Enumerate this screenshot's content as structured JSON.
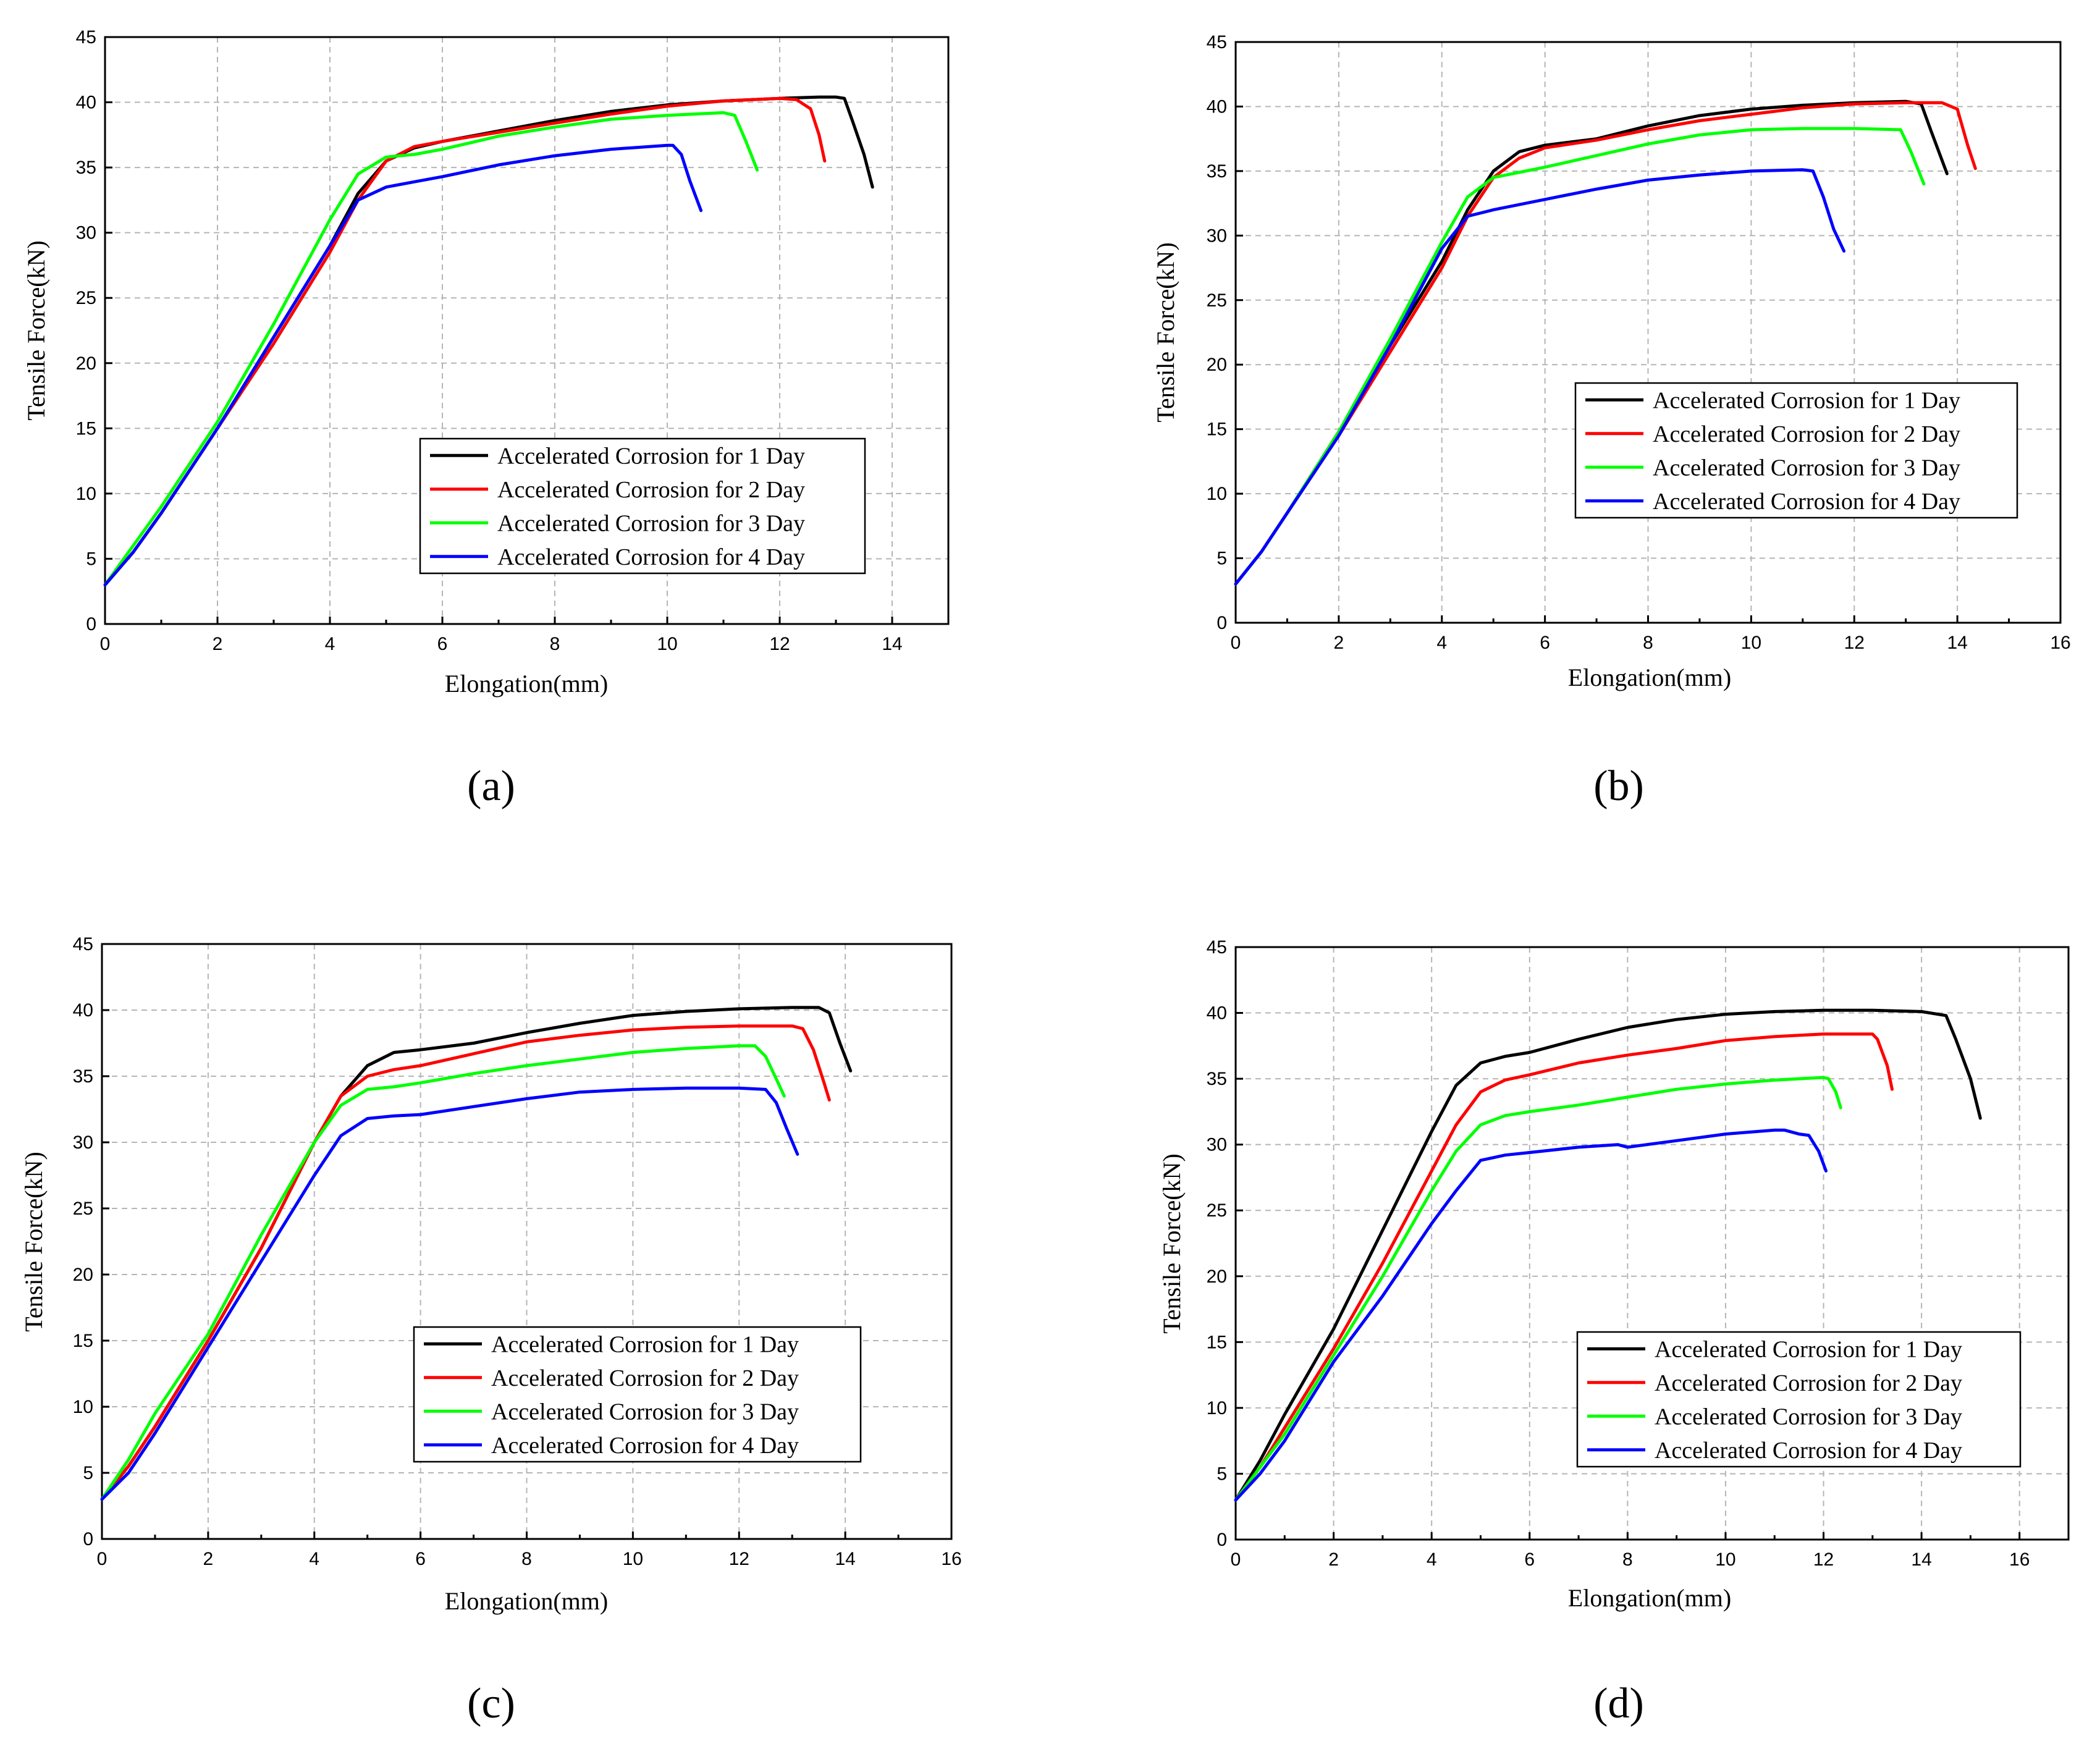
{
  "colors": {
    "day1": "#000000",
    "day2": "#ff0000",
    "day3": "#00ff00",
    "day4": "#0000ff"
  },
  "chart_data": [
    {
      "type": "line",
      "panel_label": "(a)",
      "xlabel": "Elongation(mm)",
      "ylabel": "Tensile Force(kN)",
      "xlim": [
        0,
        15
      ],
      "ylim": [
        0,
        45
      ],
      "xticks": [
        "0",
        "2",
        "4",
        "6",
        "8",
        "10",
        "12",
        "14"
      ],
      "yticks": [
        "0",
        "5",
        "10",
        "15",
        "20",
        "25",
        "30",
        "35",
        "40",
        "45"
      ],
      "grid": true,
      "legend_position": "lower-right",
      "series": [
        {
          "name": "Accelerated Corrosion for 1 Day",
          "color": "#000000",
          "x": [
            0,
            0.5,
            1,
            2,
            3,
            4,
            4.5,
            5,
            5.5,
            6,
            7,
            8,
            9,
            10,
            11,
            12,
            12.7,
            13,
            13.15,
            13.3,
            13.5,
            13.65
          ],
          "y": [
            3.0,
            5.5,
            8.5,
            15,
            22,
            29,
            33,
            35.5,
            36.5,
            37,
            37.8,
            38.6,
            39.3,
            39.8,
            40.1,
            40.3,
            40.4,
            40.4,
            40.3,
            38.5,
            36,
            33.5
          ]
        },
        {
          "name": "Accelerated Corrosion for 2 Day",
          "color": "#ff0000",
          "x": [
            0,
            0.5,
            1,
            2,
            3,
            4,
            4.5,
            5,
            5.5,
            6,
            7,
            8,
            9,
            10,
            11,
            12,
            12.3,
            12.55,
            12.7,
            12.8
          ],
          "y": [
            3.0,
            5.5,
            8.5,
            15,
            21.5,
            28.5,
            32.5,
            35.5,
            36.6,
            37,
            37.7,
            38.4,
            39.1,
            39.7,
            40.1,
            40.3,
            40.2,
            39.5,
            37.5,
            35.5
          ]
        },
        {
          "name": "Accelerated Corrosion for 3 Day",
          "color": "#00ff00",
          "x": [
            0,
            0.5,
            1,
            2,
            3,
            4,
            4.5,
            5,
            5.5,
            6,
            7,
            8,
            9,
            10,
            11,
            11.2,
            11.4,
            11.6
          ],
          "y": [
            3.0,
            6,
            9,
            15.5,
            23,
            31,
            34.5,
            35.8,
            36,
            36.4,
            37.4,
            38.1,
            38.7,
            39,
            39.2,
            39,
            37,
            34.8
          ]
        },
        {
          "name": "Accelerated Corrosion for 4 Day",
          "color": "#0000ff",
          "x": [
            0,
            0.5,
            1,
            2,
            3,
            4,
            4.5,
            5,
            5.5,
            6,
            7,
            8,
            9,
            10,
            10.1,
            10.25,
            10.4,
            10.6
          ],
          "y": [
            3.0,
            5.5,
            8.5,
            15,
            22,
            29,
            32.5,
            33.5,
            33.9,
            34.3,
            35.2,
            35.9,
            36.4,
            36.7,
            36.7,
            36,
            34,
            31.7
          ]
        }
      ]
    },
    {
      "type": "line",
      "panel_label": "(b)",
      "xlabel": "Elongation(mm)",
      "ylabel": "Tensile Force(kN)",
      "xlim": [
        0,
        16
      ],
      "ylim": [
        0,
        45
      ],
      "xticks": [
        "0",
        "2",
        "4",
        "6",
        "8",
        "10",
        "12",
        "14",
        "16"
      ],
      "yticks": [
        "0",
        "5",
        "10",
        "15",
        "20",
        "25",
        "30",
        "35",
        "40",
        "45"
      ],
      "grid": true,
      "legend_position": "right",
      "series": [
        {
          "name": "Accelerated Corrosion for 1 Day",
          "color": "#000000",
          "x": [
            0,
            0.5,
            1,
            2,
            3,
            4,
            4.5,
            5,
            5.5,
            6,
            7,
            8,
            9,
            10,
            11,
            12,
            13,
            13.3,
            13.5,
            13.8
          ],
          "y": [
            3.0,
            5.5,
            8.5,
            14.8,
            21.5,
            28,
            32,
            35,
            36.5,
            37,
            37.5,
            38.5,
            39.3,
            39.8,
            40.1,
            40.3,
            40.4,
            40.2,
            38,
            34.8
          ]
        },
        {
          "name": "Accelerated Corrosion for 2 Day",
          "color": "#ff0000",
          "x": [
            0,
            0.5,
            1,
            2,
            3,
            4,
            4.5,
            5,
            5.5,
            6,
            7,
            8,
            9,
            10,
            11,
            12,
            13,
            13.7,
            14,
            14.2,
            14.35
          ],
          "y": [
            3.0,
            5.5,
            8.5,
            14.5,
            21,
            27.5,
            31.5,
            34.5,
            36,
            36.8,
            37.4,
            38.2,
            38.9,
            39.4,
            39.9,
            40.2,
            40.3,
            40.3,
            39.8,
            37,
            35.2
          ]
        },
        {
          "name": "Accelerated Corrosion for 3 Day",
          "color": "#00ff00",
          "x": [
            0,
            0.5,
            1,
            2,
            3,
            4,
            4.5,
            5,
            5.5,
            6,
            7,
            8,
            9,
            10,
            11,
            12,
            12.9,
            13.1,
            13.35
          ],
          "y": [
            3.0,
            5.5,
            8.5,
            14.8,
            22,
            29.5,
            33,
            34.5,
            34.9,
            35.3,
            36.2,
            37.1,
            37.8,
            38.2,
            38.3,
            38.3,
            38.2,
            36.5,
            34
          ]
        },
        {
          "name": "Accelerated Corrosion for 4 Day",
          "color": "#0000ff",
          "x": [
            0,
            0.5,
            1,
            2,
            3,
            4,
            4.5,
            5,
            5.5,
            6,
            7,
            8,
            9,
            10,
            11,
            11.2,
            11.4,
            11.6,
            11.8
          ],
          "y": [
            3.0,
            5.5,
            8.5,
            14.5,
            21.5,
            29,
            31.5,
            32,
            32.4,
            32.8,
            33.6,
            34.3,
            34.7,
            35,
            35.1,
            35,
            33,
            30.5,
            28.8
          ]
        }
      ]
    },
    {
      "type": "line",
      "panel_label": "(c)",
      "xlabel": "Elongation(mm)",
      "ylabel": "Tensile Force(kN)",
      "xlim": [
        0,
        16
      ],
      "ylim": [
        0,
        45
      ],
      "xticks": [
        "0",
        "2",
        "4",
        "6",
        "8",
        "10",
        "12",
        "14",
        "16"
      ],
      "yticks": [
        "0",
        "5",
        "10",
        "15",
        "20",
        "25",
        "30",
        "35",
        "40",
        "45"
      ],
      "grid": true,
      "legend_position": "right",
      "series": [
        {
          "name": "Accelerated Corrosion for 1 Day",
          "color": "#000000",
          "x": [
            0,
            0.5,
            1,
            2,
            3,
            4,
            4.5,
            5,
            5.5,
            6,
            7,
            8,
            9,
            10,
            11,
            12,
            13,
            13.5,
            13.7,
            13.9,
            14.1
          ],
          "y": [
            3.0,
            5.5,
            8.5,
            15,
            22,
            30,
            33.5,
            35.8,
            36.8,
            37,
            37.5,
            38.3,
            39,
            39.6,
            39.9,
            40.1,
            40.2,
            40.2,
            39.8,
            37.5,
            35.4
          ]
        },
        {
          "name": "Accelerated Corrosion for 2 Day",
          "color": "#ff0000",
          "x": [
            0,
            0.5,
            1,
            2,
            3,
            4,
            4.5,
            5,
            5.5,
            6,
            7,
            8,
            9,
            10,
            11,
            12,
            13,
            13.2,
            13.4,
            13.6,
            13.7
          ],
          "y": [
            3.0,
            5.5,
            8.5,
            15,
            22,
            30,
            33.5,
            35,
            35.5,
            35.8,
            36.7,
            37.6,
            38.1,
            38.5,
            38.7,
            38.8,
            38.8,
            38.6,
            37,
            34.5,
            33.2
          ]
        },
        {
          "name": "Accelerated Corrosion for 3 Day",
          "color": "#00ff00",
          "x": [
            0,
            0.5,
            1,
            2,
            3,
            4,
            4.5,
            5,
            5.5,
            6,
            7,
            8,
            9,
            10,
            11,
            12,
            12.3,
            12.5,
            12.7,
            12.85
          ],
          "y": [
            3.0,
            6,
            9.5,
            15.5,
            23,
            30,
            32.8,
            34,
            34.2,
            34.5,
            35.2,
            35.8,
            36.3,
            36.8,
            37.1,
            37.3,
            37.3,
            36.5,
            34.8,
            33.5
          ]
        },
        {
          "name": "Accelerated Corrosion for 4 Day",
          "color": "#0000ff",
          "x": [
            0,
            0.5,
            1,
            2,
            3,
            4,
            4.5,
            5,
            5.5,
            6,
            7,
            8,
            9,
            10,
            11,
            12,
            12.5,
            12.7,
            12.9,
            13.1
          ],
          "y": [
            3.0,
            5,
            8,
            14.5,
            21,
            27.5,
            30.5,
            31.8,
            32,
            32.1,
            32.7,
            33.3,
            33.8,
            34,
            34.1,
            34.1,
            34,
            33,
            31,
            29.1
          ]
        }
      ]
    },
    {
      "type": "line",
      "panel_label": "(d)",
      "xlabel": "Elongation(mm)",
      "ylabel": "Tensile Force(kN)",
      "xlim": [
        0,
        17
      ],
      "ylim": [
        0,
        45
      ],
      "xticks": [
        "0",
        "2",
        "4",
        "6",
        "8",
        "10",
        "12",
        "14",
        "16"
      ],
      "yticks": [
        "0",
        "5",
        "10",
        "15",
        "20",
        "25",
        "30",
        "35",
        "40",
        "45"
      ],
      "grid": true,
      "legend_position": "right",
      "series": [
        {
          "name": "Accelerated Corrosion for 1 Day",
          "color": "#000000",
          "x": [
            0,
            0.5,
            1,
            2,
            3,
            4,
            4.5,
            5,
            5.5,
            6,
            7,
            8,
            9,
            10,
            11,
            12,
            13,
            14,
            14.5,
            14.7,
            15,
            15.2
          ],
          "y": [
            3.0,
            6,
            9.5,
            16,
            23.5,
            31,
            34.5,
            36.2,
            36.7,
            37,
            38,
            38.9,
            39.5,
            39.9,
            40.1,
            40.2,
            40.2,
            40.1,
            39.8,
            38,
            35,
            32
          ]
        },
        {
          "name": "Accelerated Corrosion for 2 Day",
          "color": "#ff0000",
          "x": [
            0,
            0.5,
            1,
            2,
            3,
            4,
            4.5,
            5,
            5.5,
            6,
            7,
            8,
            9,
            10,
            11,
            12,
            13,
            13.1,
            13.3,
            13.4
          ],
          "y": [
            3.0,
            5.5,
            8.5,
            14.5,
            21,
            28,
            31.5,
            34,
            34.9,
            35.3,
            36.2,
            36.8,
            37.3,
            37.9,
            38.2,
            38.4,
            38.4,
            38,
            36,
            34.2
          ]
        },
        {
          "name": "Accelerated Corrosion for 3 Day",
          "color": "#00ff00",
          "x": [
            0,
            0.5,
            1,
            2,
            3,
            4,
            4.5,
            5,
            5.5,
            6,
            7,
            8,
            9,
            10,
            11,
            12,
            12.1,
            12.25,
            12.35
          ],
          "y": [
            3.0,
            5.5,
            8,
            14,
            20,
            26.5,
            29.5,
            31.5,
            32.2,
            32.5,
            33,
            33.6,
            34.2,
            34.6,
            34.9,
            35.1,
            35,
            34,
            32.8
          ]
        },
        {
          "name": "Accelerated Corrosion for 4 Day",
          "color": "#0000ff",
          "x": [
            0,
            0.5,
            1,
            2,
            3,
            4,
            4.5,
            5,
            5.5,
            6,
            7,
            7.8,
            8,
            9,
            10,
            11,
            11.2,
            11.5,
            11.7,
            11.9,
            12.05
          ],
          "y": [
            3.0,
            5,
            7.5,
            13.5,
            18.5,
            24,
            26.5,
            28.8,
            29.2,
            29.4,
            29.8,
            30,
            29.8,
            30.3,
            30.8,
            31.1,
            31.1,
            30.8,
            30.7,
            29.5,
            28
          ]
        }
      ]
    }
  ]
}
